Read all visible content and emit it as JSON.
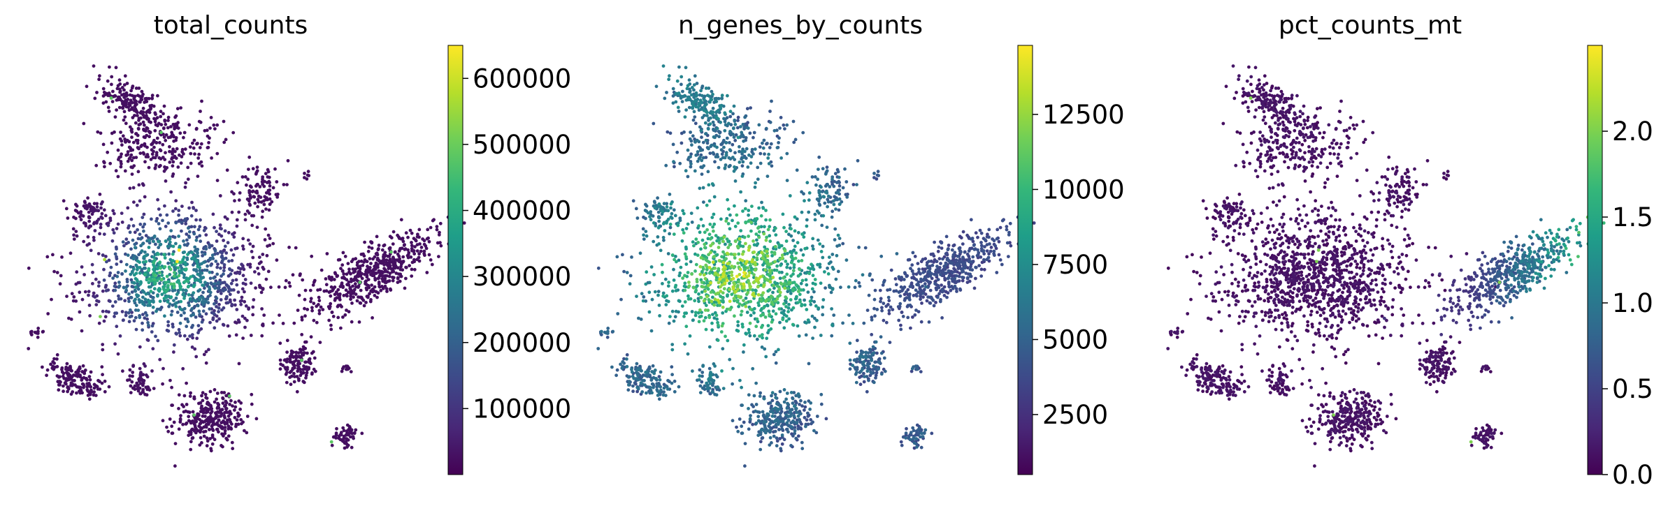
{
  "chart_data": [
    {
      "type": "scatter",
      "title": "total_counts",
      "colormap": "viridis",
      "colorbar": {
        "range": [
          0,
          650000
        ],
        "ticks": [
          100000,
          200000,
          300000,
          400000,
          500000,
          600000
        ],
        "tick_labels": [
          "100000",
          "200000",
          "300000",
          "400000",
          "500000",
          "600000"
        ]
      },
      "grid": false,
      "axes_visible": false,
      "pattern": "counts"
    },
    {
      "type": "scatter",
      "title": "n_genes_by_counts",
      "colormap": "viridis",
      "colorbar": {
        "range": [
          500,
          14800
        ],
        "ticks": [
          2500,
          5000,
          7500,
          10000,
          12500
        ],
        "tick_labels": [
          "2500",
          "5000",
          "7500",
          "10000",
          "12500"
        ]
      },
      "grid": false,
      "axes_visible": false,
      "pattern": "genes"
    },
    {
      "type": "scatter",
      "title": "pct_counts_mt",
      "colormap": "viridis",
      "colorbar": {
        "range": [
          0,
          2.5
        ],
        "ticks": [
          0.0,
          0.5,
          1.0,
          1.5,
          2.0
        ],
        "tick_labels": [
          "0.0",
          "0.5",
          "1.0",
          "1.5",
          "2.0"
        ]
      },
      "grid": false,
      "axes_visible": false,
      "pattern": "mt"
    }
  ],
  "colors": {
    "viridis": [
      "#440154",
      "#482878",
      "#3e4989",
      "#31688e",
      "#26828e",
      "#1f9e89",
      "#35b779",
      "#6ece58",
      "#b5de2b",
      "#fde725"
    ]
  }
}
